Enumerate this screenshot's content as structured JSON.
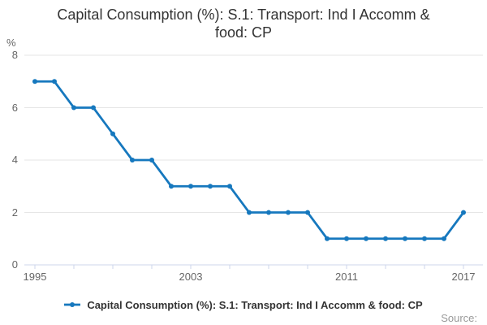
{
  "title": {
    "text": "Capital Consumption (%): S.1: Transport: Ind I Accomm & food: CP",
    "lines": [
      "Capital Consumption (%): S.1: Transport: Ind I Accomm &",
      "food: CP"
    ]
  },
  "legend": {
    "label": "Capital Consumption (%): S.1: Transport: Ind I Accomm & food: CP"
  },
  "footer": {
    "source": "Source:"
  },
  "chart_data": {
    "type": "line",
    "title": "Capital Consumption (%): S.1: Transport: Ind I Accomm & food: CP",
    "xlabel": "",
    "ylabel": "%",
    "x": [
      1995,
      1996,
      1997,
      1998,
      1999,
      2000,
      2001,
      2002,
      2003,
      2004,
      2005,
      2006,
      2007,
      2008,
      2009,
      2010,
      2011,
      2012,
      2013,
      2014,
      2015,
      2016,
      2017
    ],
    "series": [
      {
        "name": "Capital Consumption (%): S.1: Transport: Ind I Accomm & food: CP",
        "values": [
          7,
          7,
          6,
          6,
          5,
          4,
          4,
          3,
          3,
          3,
          3,
          2,
          2,
          2,
          2,
          1,
          1,
          1,
          1,
          1,
          1,
          1,
          2
        ]
      }
    ],
    "ylim": [
      0,
      8
    ],
    "yticks": [
      0,
      2,
      4,
      6,
      8
    ],
    "xtick_label_values": [
      1995,
      2003,
      2011,
      2017
    ],
    "xtick_minor_step_years": 2,
    "grid": true,
    "legend_position": "bottom",
    "markers": true,
    "colors": {
      "line": "#1678be",
      "grid": "#e6e6e6",
      "axis": "#ccd6eb",
      "tick_label": "#666666",
      "title": "#333333",
      "legend_text": "#333333",
      "source_text": "#999999"
    }
  }
}
